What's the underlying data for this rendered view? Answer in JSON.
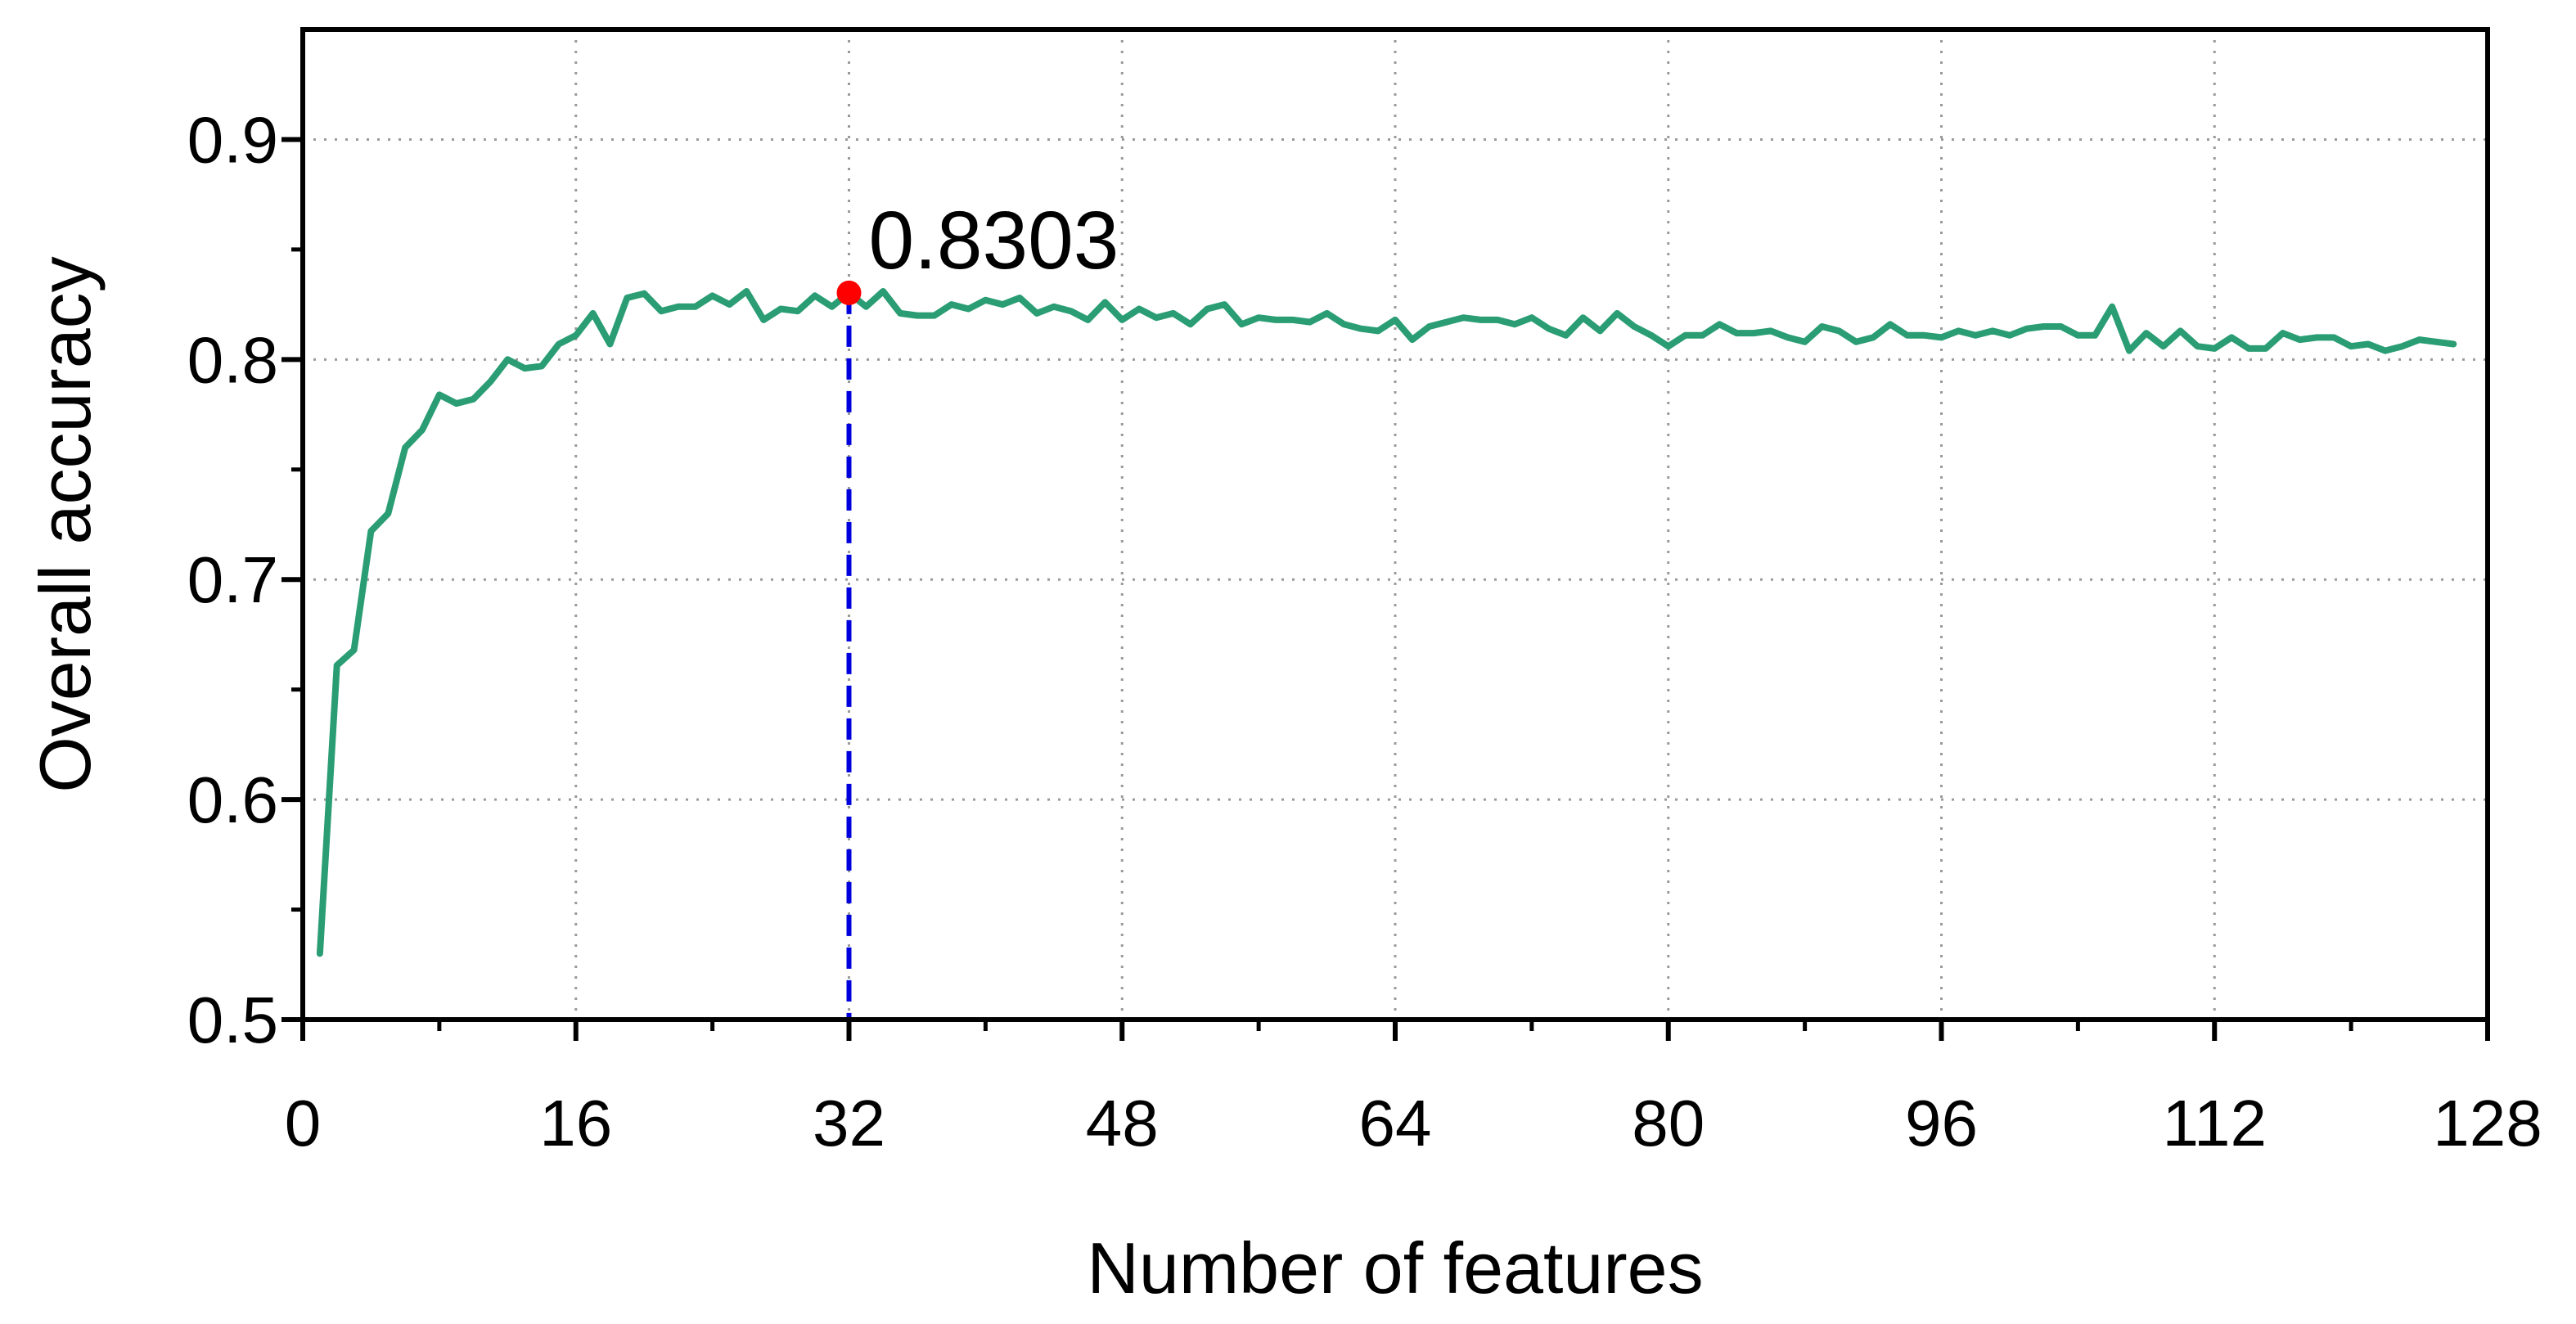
{
  "chart_data": {
    "type": "line",
    "xlabel": "Number of features",
    "ylabel": "Overall accuracy",
    "xlim": [
      0,
      128
    ],
    "ylim": [
      0.5,
      0.95
    ],
    "xticks": [
      0,
      16,
      32,
      48,
      64,
      80,
      96,
      112,
      128
    ],
    "xtick_labels": [
      "0",
      "16",
      "32",
      "48",
      "64",
      "80",
      "96",
      "112",
      "128"
    ],
    "yticks": [
      0.5,
      0.6,
      0.7,
      0.8,
      0.9
    ],
    "ytick_labels": [
      "0.5",
      "0.6",
      "0.7",
      "0.8",
      "0.9"
    ],
    "grid": true,
    "line_color": "#2a9d74",
    "highlight_color": "#ff0000",
    "dropline_color": "#0000dd",
    "highlight": {
      "x": 32,
      "y": 0.8303,
      "label": "0.8303"
    },
    "series": [
      {
        "x": [
          1,
          2,
          3,
          4,
          5,
          6,
          7,
          8,
          9,
          10,
          11,
          12,
          13,
          14,
          15,
          16,
          17,
          18,
          19,
          20,
          21,
          22,
          23,
          24,
          25,
          26,
          27,
          28,
          29,
          30,
          31,
          32,
          33,
          34,
          35,
          36,
          37,
          38,
          39,
          40,
          41,
          42,
          43,
          44,
          45,
          46,
          47,
          48,
          49,
          50,
          51,
          52,
          53,
          54,
          55,
          56,
          57,
          58,
          59,
          60,
          61,
          62,
          63,
          64,
          65,
          66,
          67,
          68,
          69,
          70,
          71,
          72,
          73,
          74,
          75,
          76,
          77,
          78,
          79,
          80,
          81,
          82,
          83,
          84,
          85,
          86,
          87,
          88,
          89,
          90,
          91,
          92,
          93,
          94,
          95,
          96,
          97,
          98,
          99,
          100,
          101,
          102,
          103,
          104,
          105,
          106,
          107,
          108,
          109,
          110,
          111,
          112,
          113,
          114,
          115,
          116,
          117,
          118,
          119,
          120,
          121,
          122,
          123,
          124,
          125,
          126
        ],
        "y": [
          0.53,
          0.661,
          0.668,
          0.722,
          0.73,
          0.76,
          0.768,
          0.784,
          0.78,
          0.782,
          0.79,
          0.8,
          0.796,
          0.797,
          0.807,
          0.811,
          0.821,
          0.807,
          0.828,
          0.83,
          0.822,
          0.824,
          0.824,
          0.829,
          0.825,
          0.831,
          0.818,
          0.823,
          0.822,
          0.829,
          0.824,
          0.8303,
          0.824,
          0.831,
          0.821,
          0.82,
          0.82,
          0.825,
          0.823,
          0.827,
          0.825,
          0.828,
          0.821,
          0.824,
          0.822,
          0.818,
          0.826,
          0.818,
          0.823,
          0.819,
          0.821,
          0.816,
          0.823,
          0.825,
          0.816,
          0.819,
          0.818,
          0.818,
          0.817,
          0.821,
          0.816,
          0.814,
          0.813,
          0.818,
          0.809,
          0.815,
          0.817,
          0.819,
          0.818,
          0.818,
          0.816,
          0.819,
          0.814,
          0.811,
          0.819,
          0.813,
          0.821,
          0.815,
          0.811,
          0.806,
          0.811,
          0.811,
          0.816,
          0.812,
          0.812,
          0.813,
          0.81,
          0.808,
          0.815,
          0.813,
          0.808,
          0.81,
          0.816,
          0.811,
          0.811,
          0.81,
          0.813,
          0.811,
          0.813,
          0.811,
          0.814,
          0.815,
          0.815,
          0.811,
          0.811,
          0.824,
          0.804,
          0.812,
          0.806,
          0.813,
          0.806,
          0.805,
          0.81,
          0.805,
          0.805,
          0.812,
          0.809,
          0.81,
          0.81,
          0.806,
          0.807,
          0.804,
          0.806,
          0.809,
          0.808,
          0.807
        ]
      }
    ]
  }
}
